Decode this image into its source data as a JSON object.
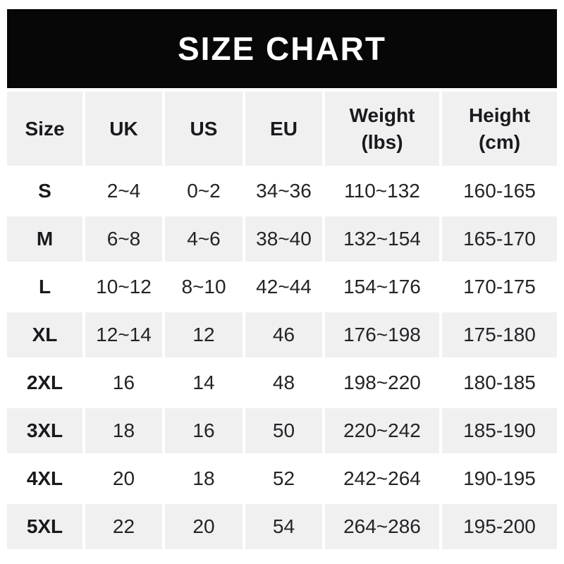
{
  "banner": {
    "title": "SIZE CHART"
  },
  "colors": {
    "banner_bg": "#070707",
    "banner_text": "#ffffff",
    "stripe": "#f0f0f1",
    "text": "#242428"
  },
  "chart_data": {
    "type": "table",
    "title": "SIZE CHART",
    "columns": [
      {
        "label": "Size",
        "sub": ""
      },
      {
        "label": "UK",
        "sub": ""
      },
      {
        "label": "US",
        "sub": ""
      },
      {
        "label": "EU",
        "sub": ""
      },
      {
        "label": "Weight",
        "sub": "(lbs)"
      },
      {
        "label": "Height",
        "sub": "(cm)"
      }
    ],
    "rows": [
      [
        "S",
        "2~4",
        "0~2",
        "34~36",
        "110~132",
        "160-165"
      ],
      [
        "M",
        "6~8",
        "4~6",
        "38~40",
        "132~154",
        "165-170"
      ],
      [
        "L",
        "10~12",
        "8~10",
        "42~44",
        "154~176",
        "170-175"
      ],
      [
        "XL",
        "12~14",
        "12",
        "46",
        "176~198",
        "175-180"
      ],
      [
        "2XL",
        "16",
        "14",
        "48",
        "198~220",
        "180-185"
      ],
      [
        "3XL",
        "18",
        "16",
        "50",
        "220~242",
        "185-190"
      ],
      [
        "4XL",
        "20",
        "18",
        "52",
        "242~264",
        "190-195"
      ],
      [
        "5XL",
        "22",
        "20",
        "54",
        "264~286",
        "195-200"
      ]
    ]
  }
}
